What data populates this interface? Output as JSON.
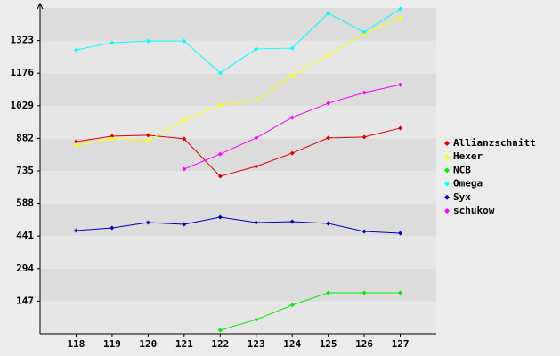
{
  "chart_data": {
    "type": "line",
    "x": [
      118,
      119,
      120,
      121,
      122,
      123,
      124,
      125,
      126,
      127
    ],
    "xlim": [
      117,
      128
    ],
    "xticks": [
      118,
      119,
      120,
      121,
      122,
      123,
      124,
      125,
      126,
      127
    ],
    "ylim": [
      0,
      1470
    ],
    "yticks": [
      147,
      294,
      441,
      588,
      735,
      882,
      1029,
      1176,
      1323
    ],
    "grid": true,
    "legend": "right",
    "series": [
      {
        "name": "Allianzschnitt",
        "color": "#e00000",
        "values": [
          867,
          892,
          896,
          880,
          711,
          755,
          815,
          884,
          888,
          928
        ]
      },
      {
        "name": "Hexer",
        "color": "#ffff00",
        "values": [
          851,
          880,
          872,
          964,
          1032,
          1052,
          1165,
          1257,
          1353,
          1426
        ]
      },
      {
        "name": "NCB",
        "color": "#00ee00",
        "values": [
          null,
          null,
          null,
          null,
          16,
          64,
          129,
          185,
          185,
          185
        ]
      },
      {
        "name": "Omega",
        "color": "#00ffff",
        "values": [
          1281,
          1313,
          1321,
          1321,
          1177,
          1285,
          1289,
          1446,
          1361,
          1466
        ]
      },
      {
        "name": "Syx",
        "color": "#0000c0",
        "values": [
          466,
          478,
          502,
          494,
          526,
          502,
          506,
          498,
          462,
          454
        ]
      },
      {
        "name": "schukow",
        "color": "#ff00ff",
        "values": [
          null,
          null,
          null,
          743,
          811,
          884,
          976,
          1040,
          1088,
          1124
        ]
      }
    ]
  }
}
